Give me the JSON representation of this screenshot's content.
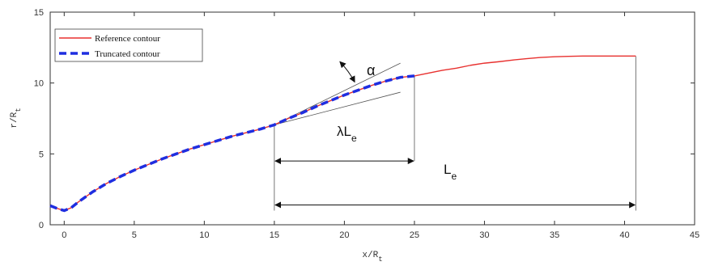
{
  "chart_data": {
    "type": "line",
    "xlabel": "x/R",
    "xlabel_sub": "t",
    "ylabel": "r/R",
    "ylabel_sub": "t",
    "xlim": [
      -1,
      45
    ],
    "ylim": [
      0,
      15
    ],
    "x_ticks": [
      0,
      5,
      10,
      15,
      20,
      25,
      30,
      35,
      40,
      45
    ],
    "y_ticks": [
      0,
      5,
      10,
      15
    ],
    "x_tick_labels": [
      "0",
      "5",
      "10",
      "15",
      "20",
      "25",
      "30",
      "35",
      "40",
      "45"
    ],
    "y_tick_labels": [
      "0",
      "5",
      "10",
      "15"
    ],
    "grid": false,
    "legend": "top-left",
    "series": [
      {
        "name": "Reference contour",
        "color": "#e8312f",
        "style": "solid",
        "x": [
          -1,
          -0.5,
          0,
          0.5,
          1,
          2,
          3,
          4,
          5,
          6,
          7,
          8,
          9,
          10,
          11,
          12,
          13,
          14,
          15,
          16,
          17,
          18,
          19,
          20,
          21,
          22,
          23,
          24,
          25,
          26,
          27,
          28,
          29,
          30,
          31,
          32,
          33,
          34,
          35,
          36,
          37,
          38,
          39,
          40,
          40.8
        ],
        "y": [
          1.35,
          1.15,
          1.0,
          1.2,
          1.6,
          2.3,
          2.9,
          3.4,
          3.85,
          4.25,
          4.65,
          5.0,
          5.35,
          5.65,
          5.95,
          6.25,
          6.5,
          6.75,
          7.05,
          7.5,
          7.9,
          8.35,
          8.75,
          9.15,
          9.5,
          9.85,
          10.15,
          10.4,
          10.5,
          10.7,
          10.9,
          11.05,
          11.25,
          11.4,
          11.5,
          11.62,
          11.72,
          11.8,
          11.85,
          11.88,
          11.9,
          11.9,
          11.9,
          11.9,
          11.9
        ]
      },
      {
        "name": "Truncated contour",
        "color": "#1f2ee0",
        "style": "dashed",
        "x": [
          -1,
          -0.5,
          0,
          0.5,
          1,
          2,
          3,
          4,
          5,
          6,
          7,
          8,
          9,
          10,
          11,
          12,
          13,
          14,
          15,
          16,
          17,
          18,
          19,
          20,
          21,
          22,
          23,
          24,
          25
        ],
        "y": [
          1.35,
          1.15,
          1.0,
          1.2,
          1.6,
          2.3,
          2.9,
          3.4,
          3.85,
          4.25,
          4.65,
          5.0,
          5.35,
          5.65,
          5.95,
          6.25,
          6.5,
          6.75,
          7.05,
          7.5,
          7.9,
          8.35,
          8.75,
          9.15,
          9.5,
          9.85,
          10.15,
          10.4,
          10.5
        ]
      }
    ],
    "annotations": {
      "alpha_label": "α",
      "lambda_le_label": "λL",
      "lambda_le_sub": "e",
      "le_label": "L",
      "le_sub": "e",
      "tangent_lines": [
        {
          "x": [
            15,
            24
          ],
          "y": [
            7.05,
            11.4
          ]
        },
        {
          "x": [
            15,
            24
          ],
          "y": [
            7.05,
            9.35
          ]
        }
      ],
      "vertical_guides": [
        {
          "x": 15,
          "y": [
            1.0,
            7.05
          ]
        },
        {
          "x": 25,
          "y": [
            4.5,
            10.5
          ]
        },
        {
          "x": 40.8,
          "y": [
            1.0,
            11.9
          ]
        }
      ],
      "dimension_arrows": [
        {
          "name": "lambda-le",
          "x": [
            15,
            25
          ],
          "y": 4.5
        },
        {
          "name": "le",
          "x": [
            15,
            40.8
          ],
          "y": 1.4
        }
      ],
      "alpha_arc": {
        "cx": 15,
        "cy": 7.05,
        "angle_range_deg": [
          28,
          44
        ],
        "radius_x": 6.5
      }
    }
  }
}
